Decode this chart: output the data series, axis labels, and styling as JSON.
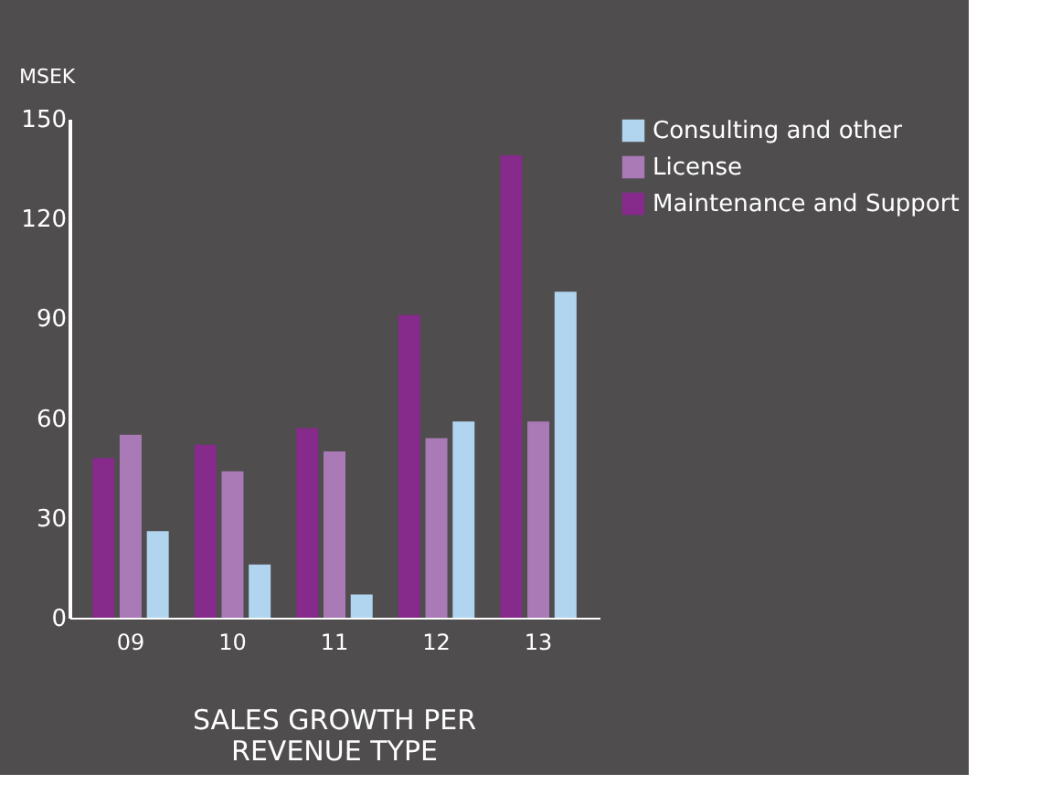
{
  "chart_data": {
    "type": "bar",
    "title": "SALES GROWTH PER\nREVENUE TYPE",
    "ylabel": "MSEK",
    "categories": [
      "09",
      "10",
      "11",
      "12",
      "13"
    ],
    "series": [
      {
        "name": "Maintenance and Support",
        "color": "#862a8c",
        "values": [
          48,
          52,
          57,
          91,
          139
        ]
      },
      {
        "name": "License",
        "color": "#a97ab6",
        "values": [
          55,
          44,
          50,
          54,
          59
        ]
      },
      {
        "name": "Consulting and other",
        "color": "#b1d4ef",
        "values": [
          26,
          16,
          7,
          59,
          98
        ]
      }
    ],
    "ylim": [
      0,
      150
    ],
    "yticks": [
      0,
      30,
      60,
      90,
      120,
      150
    ],
    "grid": false,
    "legend": "right"
  }
}
